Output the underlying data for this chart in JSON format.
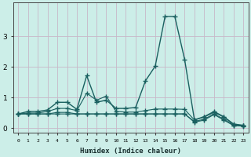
{
  "xlabel": "Humidex (Indice chaleur)",
  "background_color": "#cceee8",
  "grid_color": "#c8b8c8",
  "line_color": "#1a6060",
  "x": [
    0,
    1,
    2,
    3,
    4,
    5,
    6,
    7,
    8,
    9,
    10,
    11,
    12,
    13,
    14,
    15,
    16,
    17,
    18,
    19,
    20,
    21,
    22,
    23
  ],
  "series1": [
    0.47,
    0.55,
    0.55,
    0.6,
    0.85,
    0.85,
    0.62,
    1.72,
    0.85,
    0.92,
    0.65,
    0.65,
    0.68,
    1.55,
    2.03,
    3.65,
    3.65,
    2.25,
    0.28,
    0.38,
    0.55,
    0.38,
    0.14,
    0.1
  ],
  "series2": [
    0.47,
    0.5,
    0.5,
    0.55,
    0.65,
    0.65,
    0.58,
    1.15,
    0.92,
    1.05,
    0.55,
    0.53,
    0.53,
    0.58,
    0.63,
    0.63,
    0.63,
    0.62,
    0.27,
    0.37,
    0.52,
    0.37,
    0.12,
    0.09
  ],
  "series3": [
    0.47,
    0.47,
    0.47,
    0.47,
    0.52,
    0.52,
    0.47,
    0.47,
    0.47,
    0.47,
    0.47,
    0.47,
    0.47,
    0.47,
    0.47,
    0.47,
    0.47,
    0.47,
    0.22,
    0.3,
    0.47,
    0.3,
    0.1,
    0.08
  ],
  "series4": [
    0.47,
    0.47,
    0.47,
    0.47,
    0.47,
    0.47,
    0.47,
    0.47,
    0.47,
    0.47,
    0.47,
    0.47,
    0.47,
    0.47,
    0.47,
    0.47,
    0.47,
    0.47,
    0.2,
    0.27,
    0.45,
    0.27,
    0.09,
    0.07
  ],
  "ylim": [
    -0.15,
    4.1
  ],
  "xlim": [
    -0.5,
    23.5
  ],
  "yticks": [
    0,
    1,
    2,
    3
  ],
  "xticks": [
    0,
    1,
    2,
    3,
    4,
    5,
    6,
    7,
    8,
    9,
    10,
    11,
    12,
    13,
    14,
    15,
    16,
    17,
    18,
    19,
    20,
    21,
    22,
    23
  ]
}
